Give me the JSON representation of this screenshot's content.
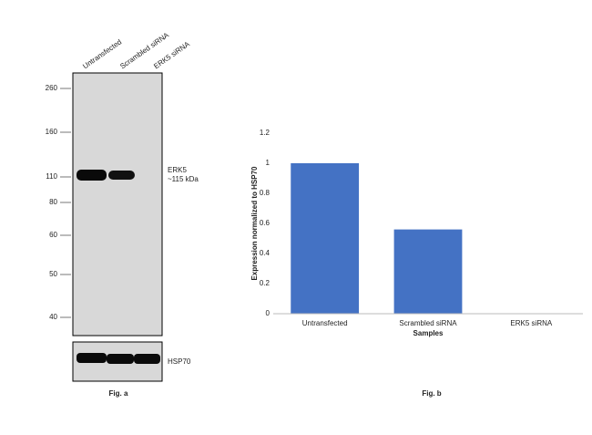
{
  "blot": {
    "lanes": [
      "Untransfected",
      "Scrambled siRNA",
      "ERK5 siRNA"
    ],
    "markers": [
      "260",
      "160",
      "110",
      "80",
      "60",
      "50",
      "40"
    ],
    "band_labels": [
      "ERK5",
      "~115 kDa"
    ],
    "loading_label": "HSP70",
    "caption": "Fig. a"
  },
  "chart_data": {
    "type": "bar",
    "categories": [
      "Untransfected",
      "Scrambled siRNA",
      "ERK5 siRNA"
    ],
    "values": [
      1,
      0.56,
      0
    ],
    "color": "#4472c4",
    "ylim": [
      0,
      1.2
    ],
    "yticks": [
      0,
      0.2,
      0.4,
      0.6,
      0.8,
      1,
      1.2
    ],
    "x_label": "Samples",
    "y_label": "Expression normalized to HSP70",
    "caption": "Fig. b"
  }
}
